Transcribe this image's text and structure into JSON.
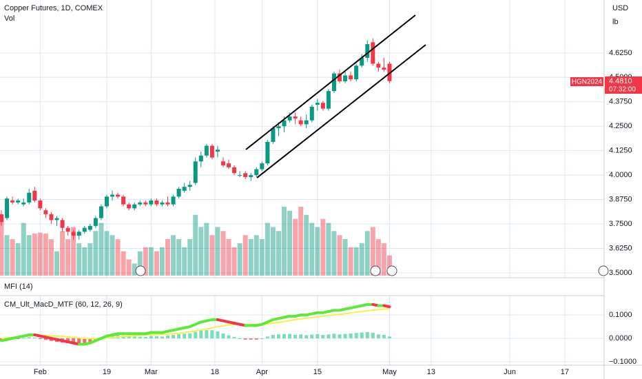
{
  "header": {
    "title": "Copper Futures, 1D, COMEX",
    "volume_label": "Vol",
    "currency": "USD",
    "unit": "lb"
  },
  "price_badge": {
    "symbol": "HGN2024",
    "price": "4.4810",
    "countdown": "07:32:00"
  },
  "chart_data": {
    "type": "candlestick",
    "open": [
      3.8,
      3.78,
      3.87,
      3.86,
      3.85,
      3.86,
      3.92,
      3.87,
      3.82,
      3.8,
      3.77,
      3.77,
      3.73,
      3.71,
      3.69,
      3.71,
      3.72,
      3.74,
      3.78,
      3.84,
      3.89,
      3.9,
      3.89,
      3.85,
      3.83,
      3.85,
      3.86,
      3.85,
      3.87,
      3.85,
      3.86,
      3.85,
      3.89,
      3.92,
      3.94,
      3.96,
      4.07,
      4.1,
      4.15,
      4.12,
      4.07,
      4.06,
      4.04,
      4.0,
      4.01,
      3.99,
      4.0,
      4.03,
      4.06,
      4.17,
      4.24,
      4.25,
      4.28,
      4.3,
      4.28,
      4.26,
      4.28,
      4.36,
      4.37,
      4.34,
      4.43,
      4.52,
      4.48,
      4.51,
      4.49,
      4.56,
      4.6,
      4.68,
      4.57,
      4.55,
      4.57
    ],
    "high": [
      3.82,
      3.89,
      3.89,
      3.88,
      3.88,
      3.93,
      3.94,
      3.88,
      3.83,
      3.81,
      3.79,
      3.78,
      3.74,
      3.72,
      3.72,
      3.74,
      3.75,
      3.79,
      3.85,
      3.9,
      3.92,
      3.91,
      3.9,
      3.86,
      3.86,
      3.87,
      3.87,
      3.88,
      3.88,
      3.87,
      3.89,
      3.9,
      3.94,
      3.96,
      3.97,
      4.09,
      4.12,
      4.16,
      4.16,
      4.15,
      4.09,
      4.08,
      4.05,
      4.02,
      4.02,
      4.01,
      4.04,
      4.07,
      4.18,
      4.25,
      4.27,
      4.3,
      4.32,
      4.32,
      4.3,
      4.31,
      4.36,
      4.39,
      4.38,
      4.44,
      4.53,
      4.54,
      4.53,
      4.53,
      4.57,
      4.62,
      4.69,
      4.7,
      4.58,
      4.6,
      4.58
    ],
    "low": [
      3.74,
      3.77,
      3.85,
      3.85,
      3.84,
      3.85,
      3.86,
      3.82,
      3.78,
      3.75,
      3.74,
      3.71,
      3.69,
      3.67,
      3.67,
      3.7,
      3.71,
      3.73,
      3.77,
      3.83,
      3.87,
      3.88,
      3.84,
      3.82,
      3.82,
      3.84,
      3.84,
      3.84,
      3.84,
      3.84,
      3.84,
      3.84,
      3.88,
      3.91,
      3.92,
      3.95,
      4.04,
      4.09,
      4.08,
      4.09,
      4.04,
      4.03,
      4.0,
      3.99,
      3.98,
      3.97,
      3.99,
      4.02,
      4.05,
      4.16,
      4.2,
      4.22,
      4.27,
      4.26,
      4.25,
      4.24,
      4.27,
      4.33,
      4.33,
      4.33,
      4.42,
      4.47,
      4.47,
      4.48,
      4.48,
      4.55,
      4.58,
      4.56,
      4.53,
      4.53,
      4.47
    ],
    "close": [
      3.76,
      3.88,
      3.86,
      3.87,
      3.86,
      3.91,
      3.87,
      3.83,
      3.8,
      3.77,
      3.78,
      3.73,
      3.71,
      3.69,
      3.71,
      3.73,
      3.74,
      3.78,
      3.84,
      3.89,
      3.9,
      3.89,
      3.85,
      3.83,
      3.85,
      3.86,
      3.85,
      3.87,
      3.85,
      3.86,
      3.85,
      3.89,
      3.93,
      3.94,
      3.95,
      4.07,
      4.1,
      4.15,
      4.09,
      4.13,
      4.05,
      4.04,
      4.01,
      4.0,
      3.99,
      4.0,
      4.03,
      4.06,
      4.17,
      4.24,
      4.25,
      4.28,
      4.3,
      4.29,
      4.26,
      4.28,
      4.35,
      4.37,
      4.34,
      4.43,
      4.52,
      4.48,
      4.51,
      4.49,
      4.56,
      4.6,
      4.67,
      4.57,
      4.55,
      4.54,
      4.481
    ],
    "volume": [
      75,
      50,
      45,
      40,
      65,
      50,
      52,
      53,
      52,
      45,
      30,
      55,
      45,
      60,
      40,
      35,
      40,
      55,
      65,
      55,
      50,
      45,
      30,
      20,
      15,
      30,
      35,
      35,
      30,
      35,
      45,
      50,
      45,
      35,
      45,
      75,
      60,
      65,
      50,
      60,
      55,
      45,
      35,
      40,
      50,
      45,
      50,
      45,
      65,
      60,
      55,
      85,
      80,
      70,
      85,
      75,
      65,
      60,
      70,
      65,
      55,
      50,
      45,
      35,
      35,
      40,
      55,
      60,
      45,
      40,
      25
    ],
    "up_color": "#089981",
    "down_color": "#f23645",
    "xlim": [
      -0.25,
      108.7
    ],
    "xticks": [
      {
        "value": 7,
        "label": "Feb"
      },
      19,
      {
        "value": 27,
        "label": "Mar"
      },
      {
        "value": 38.5,
        "label": "18"
      },
      {
        "value": 47,
        "label": "Apr"
      },
      {
        "value": 57,
        "label": "15"
      },
      {
        "value": 70,
        "label": "May"
      },
      {
        "value": 77.5,
        "label": "13"
      },
      {
        "value": 91.7,
        "label": "Jun"
      },
      {
        "value": 101.6,
        "label": "17"
      }
    ],
    "ylim": [
      3.475,
      4.896
    ],
    "yticks": [
      {
        "value": 3.5,
        "label": "3.5000"
      },
      {
        "value": 3.625,
        "label": "3.6250"
      },
      {
        "value": 3.75,
        "label": "3.7500"
      },
      {
        "value": 3.875,
        "label": "3.8750"
      },
      {
        "value": 4.0,
        "label": "4.0000"
      },
      {
        "value": 4.125,
        "label": "4.1250"
      },
      {
        "value": 4.25,
        "label": "4.2500"
      },
      {
        "value": 4.375,
        "label": "4.3750"
      },
      {
        "value": 4.5,
        "label": "4.5000"
      },
      {
        "value": 4.625,
        "label": "4.6250"
      }
    ],
    "grid": true
  },
  "mfi": {
    "label": "MFI (14)"
  },
  "macd": {
    "label": "CM_Ult_MacD_MTF (60, 12, 26, 9)",
    "ylim": [
      -0.115,
      0.18
    ],
    "yticks": [
      {
        "value": 0.1,
        "label": "0.1000"
      },
      {
        "value": 0,
        "label": "0.0000"
      },
      {
        "value": -0.1,
        "label": "−0.1000"
      }
    ],
    "macd": [
      -0.01,
      -0.005,
      0,
      0.005,
      0.01,
      0.015,
      0.015,
      0.01,
      0.005,
      0,
      -0.005,
      -0.01,
      -0.015,
      -0.02,
      -0.025,
      -0.025,
      -0.02,
      -0.01,
      0,
      0.01,
      0.015,
      0.02,
      0.02,
      0.02,
      0.02,
      0.02,
      0.02,
      0.025,
      0.025,
      0.025,
      0.03,
      0.035,
      0.04,
      0.045,
      0.05,
      0.06,
      0.07,
      0.075,
      0.08,
      0.08,
      0.075,
      0.07,
      0.065,
      0.06,
      0.055,
      0.055,
      0.055,
      0.06,
      0.07,
      0.08,
      0.085,
      0.09,
      0.095,
      0.095,
      0.1,
      0.1,
      0.105,
      0.11,
      0.11,
      0.115,
      0.12,
      0.12,
      0.125,
      0.13,
      0.135,
      0.14,
      0.145,
      0.145,
      0.14,
      0.14,
      0.135
    ],
    "signal": [
      0,
      0.002,
      0.004,
      0.006,
      0.008,
      0.01,
      0.012,
      0.012,
      0.012,
      0.011,
      0.01,
      0.008,
      0.006,
      0.004,
      0.002,
      0,
      -0.001,
      -0.001,
      0,
      0.002,
      0.004,
      0.006,
      0.008,
      0.01,
      0.012,
      0.013,
      0.014,
      0.015,
      0.016,
      0.017,
      0.018,
      0.02,
      0.022,
      0.025,
      0.028,
      0.032,
      0.036,
      0.04,
      0.045,
      0.05,
      0.054,
      0.057,
      0.059,
      0.06,
      0.06,
      0.06,
      0.06,
      0.06,
      0.062,
      0.065,
      0.068,
      0.072,
      0.076,
      0.08,
      0.083,
      0.086,
      0.089,
      0.092,
      0.095,
      0.098,
      0.1,
      0.103,
      0.106,
      0.109,
      0.112,
      0.115,
      0.118,
      0.121,
      0.123,
      0.125,
      0.127
    ],
    "hist": [
      -0.01,
      -0.007,
      -0.004,
      -0.001,
      0.002,
      0.005,
      0.003,
      -0.002,
      -0.007,
      -0.011,
      -0.015,
      -0.018,
      -0.021,
      -0.024,
      -0.027,
      -0.025,
      -0.019,
      -0.009,
      0,
      0.008,
      0.011,
      0.014,
      0.012,
      0.01,
      0.008,
      0.007,
      0.006,
      0.01,
      0.009,
      0.008,
      0.012,
      0.015,
      0.018,
      0.02,
      0.022,
      0.028,
      0.034,
      0.035,
      0.035,
      0.03,
      0.021,
      0.013,
      0.006,
      0,
      -0.005,
      -0.005,
      -0.005,
      0,
      0.008,
      0.015,
      0.017,
      0.018,
      0.019,
      0.015,
      0.017,
      0.014,
      0.016,
      0.018,
      0.015,
      0.017,
      0.02,
      0.017,
      0.019,
      0.021,
      0.023,
      0.025,
      0.027,
      0.024,
      0.017,
      0.015,
      0.008
    ],
    "rise_color": "#5ee83a",
    "fall_color": "#f23645",
    "signal_color": "#f5f04a"
  }
}
